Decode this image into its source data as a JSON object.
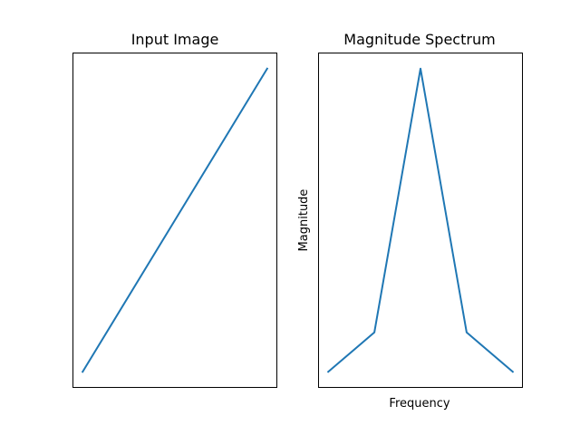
{
  "figure": {
    "background": "#ffffff",
    "line_color": "#1f77b4"
  },
  "chart_data": [
    {
      "type": "line",
      "title": "Input Image",
      "xlabel": "",
      "ylabel": "",
      "grid": false,
      "ticks_visible": false,
      "x": [
        0,
        1
      ],
      "y": [
        0,
        1
      ],
      "xlim": [
        -0.05,
        1.05
      ],
      "ylim": [
        -0.05,
        1.05
      ]
    },
    {
      "type": "line",
      "title": "Magnitude Spectrum",
      "xlabel": "Frequency",
      "ylabel": "Magnitude",
      "grid": false,
      "ticks_visible": false,
      "x": [
        -4,
        -2,
        0,
        2,
        4
      ],
      "y": [
        0,
        0.13,
        1.0,
        0.13,
        0
      ],
      "xlim": [
        -4.4,
        4.4
      ],
      "ylim": [
        -0.05,
        1.05
      ]
    }
  ]
}
